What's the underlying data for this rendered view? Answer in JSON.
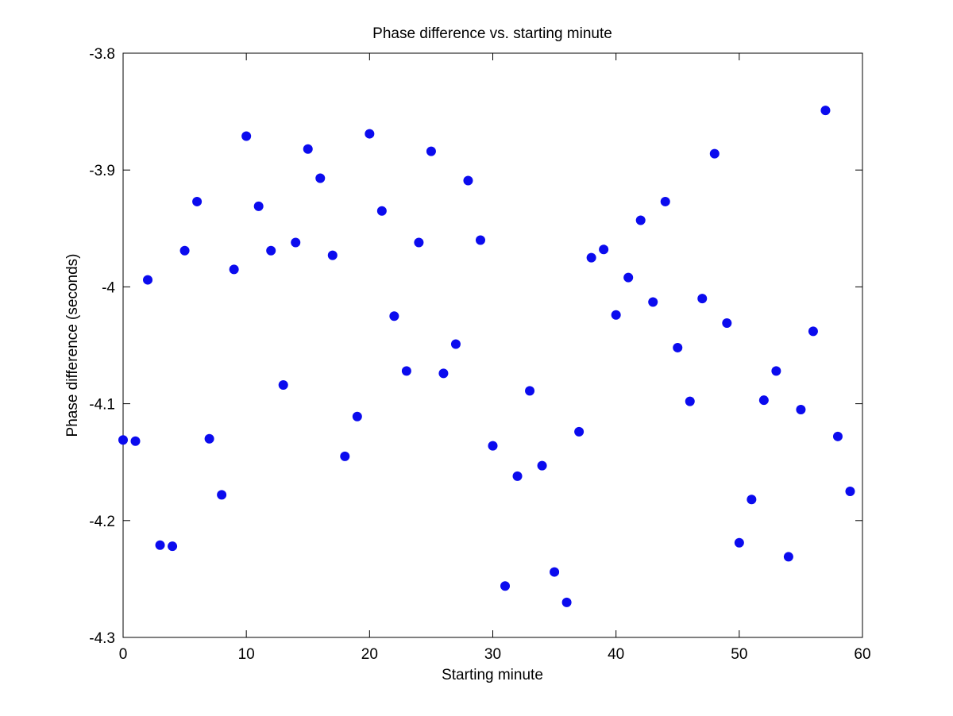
{
  "chart_data": {
    "type": "scatter",
    "title": "Phase difference vs. starting minute",
    "xlabel": "Starting minute",
    "ylabel": "Phase difference (seconds)",
    "xlim": [
      0,
      60
    ],
    "ylim": [
      -4.3,
      -3.8
    ],
    "xticks": [
      0,
      10,
      20,
      30,
      40,
      50,
      60
    ],
    "yticks": [
      -4.3,
      -4.2,
      -4.1,
      -4,
      -3.9,
      -3.8
    ],
    "xtick_labels": [
      "0",
      "10",
      "20",
      "30",
      "40",
      "50",
      "60"
    ],
    "ytick_labels": [
      "-4.3",
      "-4.2",
      "-4.1",
      "-4",
      "-3.9",
      "-3.8"
    ],
    "grid": false,
    "legend": "none",
    "colors": {
      "marker": "#0b0bee",
      "axis": "#000000",
      "background": "#ffffff"
    },
    "x": [
      0,
      1,
      2,
      3,
      4,
      5,
      6,
      7,
      8,
      9,
      10,
      11,
      12,
      13,
      14,
      15,
      16,
      17,
      18,
      19,
      20,
      21,
      22,
      23,
      24,
      25,
      26,
      27,
      28,
      29,
      30,
      31,
      32,
      33,
      34,
      35,
      36,
      37,
      38,
      39,
      40,
      41,
      42,
      43,
      44,
      45,
      46,
      47,
      48,
      49,
      50,
      51,
      52,
      53,
      54,
      55,
      56,
      57,
      58,
      59
    ],
    "y": [
      -4.131,
      -4.132,
      -3.994,
      -4.221,
      -4.222,
      -3.969,
      -3.927,
      -4.13,
      -4.178,
      -3.985,
      -3.871,
      -3.931,
      -3.969,
      -4.084,
      -3.962,
      -3.882,
      -3.907,
      -3.973,
      -4.145,
      -4.111,
      -3.869,
      -3.935,
      -4.025,
      -4.072,
      -3.962,
      -3.884,
      -4.074,
      -4.049,
      -3.909,
      -3.96,
      -4.136,
      -4.256,
      -4.162,
      -4.089,
      -4.153,
      -4.244,
      -4.27,
      -4.124,
      -3.975,
      -3.968,
      -4.024,
      -3.992,
      -3.943,
      -4.013,
      -3.927,
      -4.052,
      -4.098,
      -4.01,
      -3.886,
      -4.031,
      -4.219,
      -4.182,
      -4.097,
      -4.072,
      -4.231,
      -4.105,
      -4.038,
      -3.849,
      -4.128,
      -4.175
    ]
  }
}
